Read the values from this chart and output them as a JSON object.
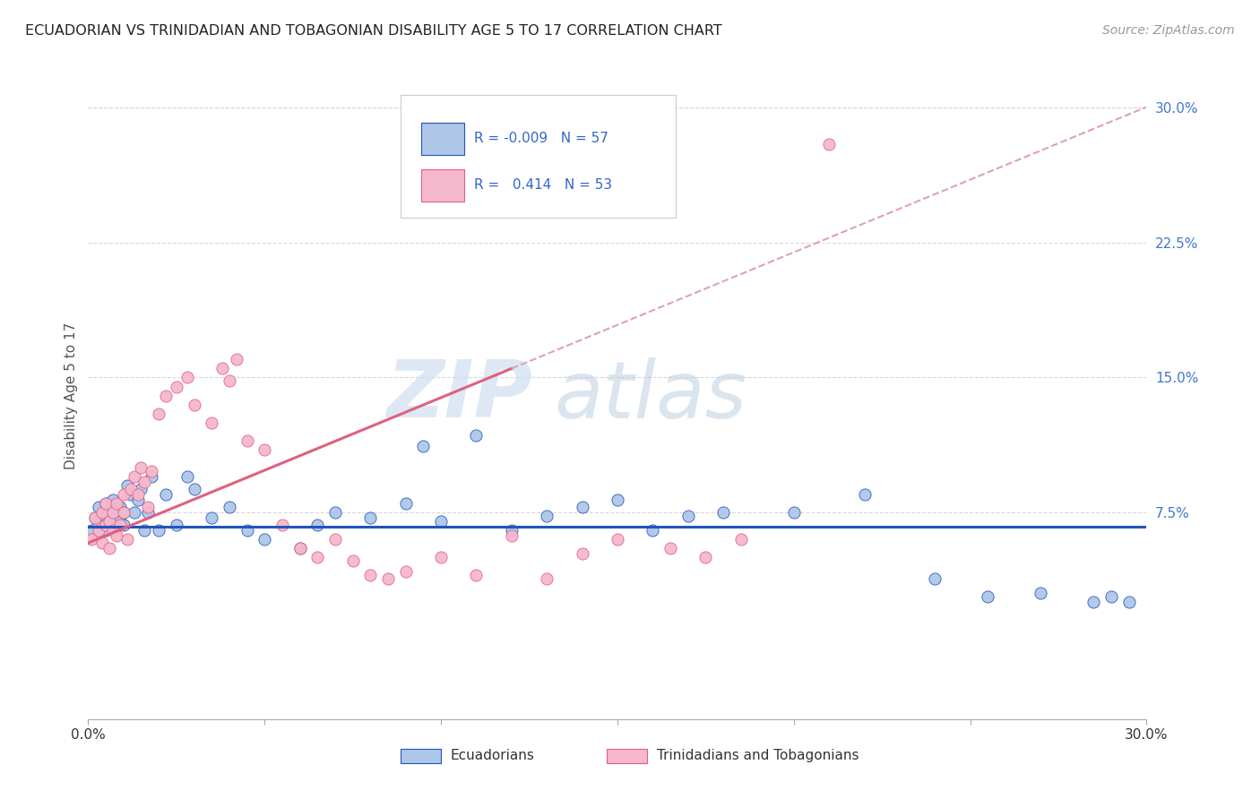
{
  "title": "ECUADORIAN VS TRINIDADIAN AND TOBAGONIAN DISABILITY AGE 5 TO 17 CORRELATION CHART",
  "source": "Source: ZipAtlas.com",
  "ylabel": "Disability Age 5 to 17",
  "xlim": [
    0.0,
    0.3
  ],
  "ylim": [
    -0.04,
    0.32
  ],
  "ytick_labels_right": [
    "30.0%",
    "22.5%",
    "15.0%",
    "7.5%"
  ],
  "ytick_values_right": [
    0.3,
    0.225,
    0.15,
    0.075
  ],
  "legend_label1": "Ecuadorians",
  "legend_label2": "Trinidadians and Tobagonians",
  "r1": "-0.009",
  "n1": "57",
  "r2": "0.414",
  "n2": "53",
  "color_ecu": "#aec6e8",
  "color_ecu_line": "#2255bb",
  "color_tri": "#f5b8cc",
  "color_tri_line": "#e06080",
  "color_tri_dash": "#e0a0b8",
  "watermark_zip": "ZIP",
  "watermark_atlas": "atlas",
  "background_color": "#ffffff",
  "grid_color": "#d8d8d8",
  "ecu_x": [
    0.001,
    0.002,
    0.003,
    0.003,
    0.004,
    0.005,
    0.005,
    0.006,
    0.006,
    0.007,
    0.007,
    0.008,
    0.008,
    0.009,
    0.009,
    0.01,
    0.01,
    0.011,
    0.012,
    0.013,
    0.014,
    0.015,
    0.016,
    0.017,
    0.018,
    0.02,
    0.022,
    0.025,
    0.028,
    0.03,
    0.035,
    0.04,
    0.045,
    0.05,
    0.06,
    0.065,
    0.07,
    0.08,
    0.09,
    0.095,
    0.1,
    0.11,
    0.12,
    0.13,
    0.14,
    0.15,
    0.16,
    0.17,
    0.18,
    0.2,
    0.22,
    0.24,
    0.255,
    0.27,
    0.285,
    0.29,
    0.295
  ],
  "ecu_y": [
    0.065,
    0.072,
    0.068,
    0.078,
    0.074,
    0.08,
    0.065,
    0.075,
    0.07,
    0.068,
    0.082,
    0.077,
    0.072,
    0.07,
    0.078,
    0.075,
    0.068,
    0.09,
    0.085,
    0.075,
    0.082,
    0.088,
    0.065,
    0.075,
    0.095,
    0.065,
    0.085,
    0.068,
    0.095,
    0.088,
    0.072,
    0.078,
    0.065,
    0.06,
    0.055,
    0.068,
    0.075,
    0.072,
    0.08,
    0.112,
    0.07,
    0.118,
    0.065,
    0.073,
    0.078,
    0.082,
    0.065,
    0.073,
    0.075,
    0.075,
    0.085,
    0.038,
    0.028,
    0.03,
    0.025,
    0.028,
    0.025
  ],
  "tri_x": [
    0.001,
    0.002,
    0.003,
    0.004,
    0.004,
    0.005,
    0.005,
    0.006,
    0.006,
    0.007,
    0.007,
    0.008,
    0.008,
    0.009,
    0.01,
    0.01,
    0.011,
    0.012,
    0.013,
    0.014,
    0.015,
    0.016,
    0.017,
    0.018,
    0.02,
    0.022,
    0.025,
    0.028,
    0.03,
    0.035,
    0.038,
    0.04,
    0.042,
    0.045,
    0.05,
    0.055,
    0.06,
    0.065,
    0.07,
    0.075,
    0.08,
    0.085,
    0.09,
    0.1,
    0.11,
    0.12,
    0.13,
    0.14,
    0.15,
    0.165,
    0.175,
    0.185,
    0.21
  ],
  "tri_y": [
    0.06,
    0.072,
    0.065,
    0.058,
    0.075,
    0.068,
    0.08,
    0.055,
    0.07,
    0.065,
    0.075,
    0.062,
    0.08,
    0.068,
    0.075,
    0.085,
    0.06,
    0.088,
    0.095,
    0.085,
    0.1,
    0.092,
    0.078,
    0.098,
    0.13,
    0.14,
    0.145,
    0.15,
    0.135,
    0.125,
    0.155,
    0.148,
    0.16,
    0.115,
    0.11,
    0.068,
    0.055,
    0.05,
    0.06,
    0.048,
    0.04,
    0.038,
    0.042,
    0.05,
    0.04,
    0.062,
    0.038,
    0.052,
    0.06,
    0.055,
    0.05,
    0.06,
    0.28
  ]
}
